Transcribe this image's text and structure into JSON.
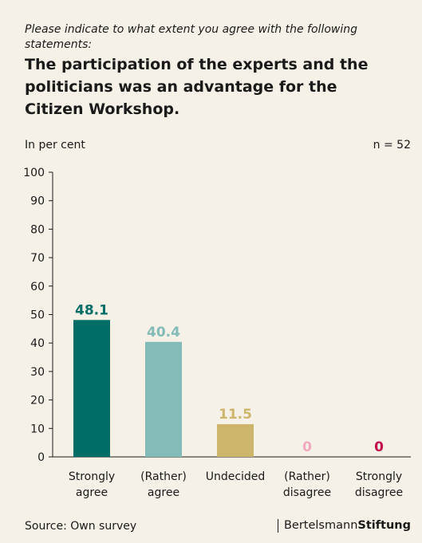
{
  "header": {
    "subtitle": "Please indicate to what extent you agree with the following statements:",
    "title": "The participation of the experts and the politicians was an advantage for the Citizen Workshop."
  },
  "unit_label": "In per cent",
  "sample_size": "n = 52",
  "footer": {
    "source": "Source: Own survey",
    "brand_light": "Bertelsmann",
    "brand_bold": "Stiftung"
  },
  "chart_data": {
    "type": "bar",
    "title": "The participation of the experts and the politicians was an advantage for the Citizen Workshop.",
    "xlabel": "",
    "ylabel": "In per cent",
    "ylim": [
      0,
      100
    ],
    "yticks": [
      0,
      10,
      20,
      30,
      40,
      50,
      60,
      70,
      80,
      90,
      100
    ],
    "grid": false,
    "categories": [
      [
        "Strongly",
        "agree"
      ],
      [
        "(Rather)",
        "agree"
      ],
      [
        "Undecided"
      ],
      [
        "(Rather)",
        "disagree"
      ],
      [
        "Strongly",
        "disagree"
      ]
    ],
    "values": [
      48.1,
      40.4,
      11.5,
      0,
      0
    ],
    "value_labels": [
      "48.1",
      "40.4",
      "11.5",
      "0",
      "0"
    ],
    "colors": [
      "#006e66",
      "#82bbb8",
      "#cdb56c",
      "#f1a9bf",
      "#c20f4b"
    ]
  }
}
